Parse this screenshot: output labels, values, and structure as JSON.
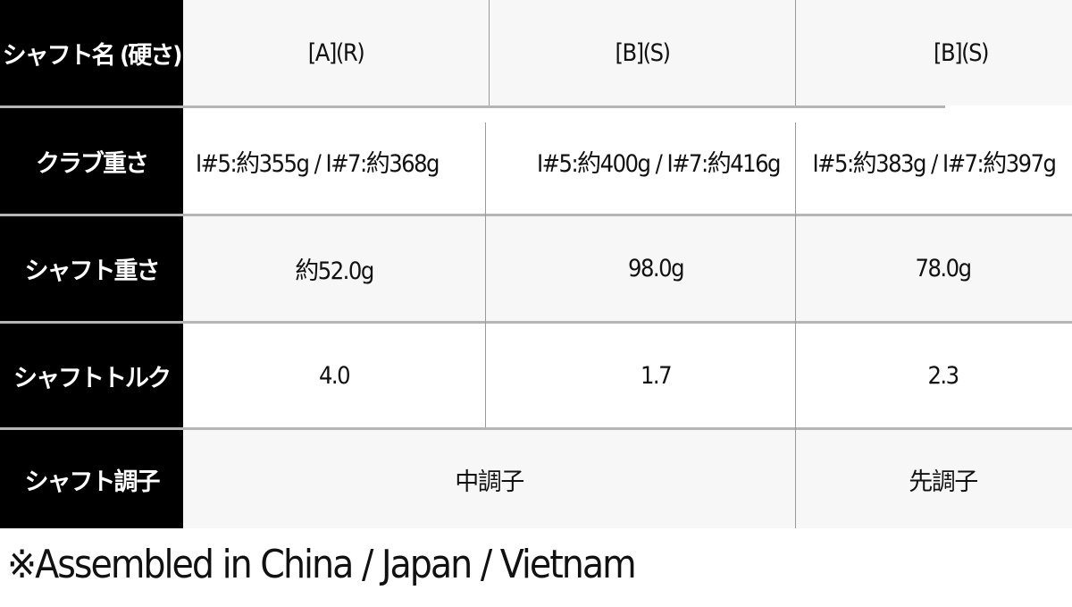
{
  "table": {
    "rows": [
      {
        "label": "シャフト名 (硬さ)",
        "cells": [
          "[A](R)",
          "[B](S)",
          "[B](S)"
        ]
      },
      {
        "label": "クラブ重さ",
        "cells": [
          "I#5:約355g / I#7:約368g",
          "I#5:約400g / I#7:約416g",
          "I#5:約383g / I#7:約397g"
        ]
      },
      {
        "label": "シャフト重さ",
        "cells": [
          "約52.0g",
          "98.0g",
          "78.0g"
        ]
      },
      {
        "label": "シャフトトルク",
        "cells": [
          "4.0",
          "1.7",
          "2.3"
        ]
      },
      {
        "label": "シャフト調子",
        "cells": [
          "中調子",
          "先調子"
        ]
      }
    ]
  },
  "footer": "※Assembled in China / Japan / Vietnam",
  "colors": {
    "header_bg": "#000000",
    "header_text": "#ffffff",
    "row_alt_bg": "#f7f7f7",
    "grid": "#b5b5b5"
  }
}
